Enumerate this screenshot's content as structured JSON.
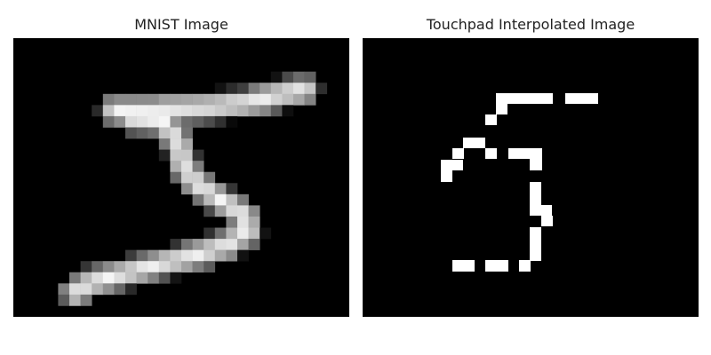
{
  "figure": {
    "panels": [
      {
        "title": "MNIST Image",
        "image": "grayscale handwritten digit five, blocky low-resolution pixels",
        "colormap": "gray"
      },
      {
        "title": "Touchpad Interpolated Image",
        "image": "binary white dotted strokes forming the digit five",
        "colormap": "binary-white-on-black"
      }
    ]
  }
}
